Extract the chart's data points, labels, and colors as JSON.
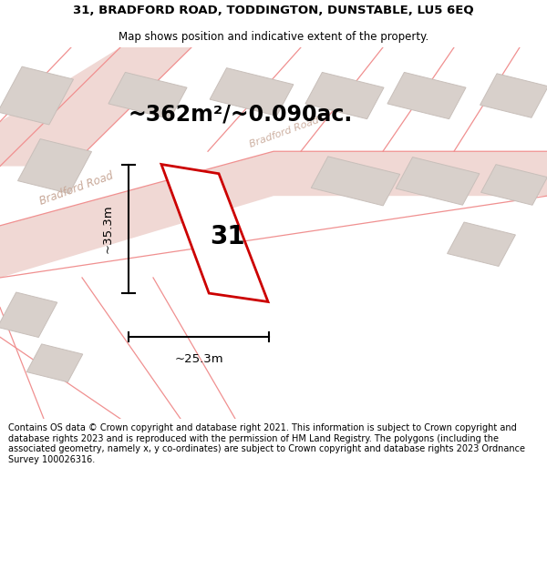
{
  "title_line1": "31, BRADFORD ROAD, TODDINGTON, DUNSTABLE, LU5 6EQ",
  "title_line2": "Map shows position and indicative extent of the property.",
  "area_text": "~362m²/~0.090ac.",
  "label_number": "31",
  "dim_vertical": "~35.3m",
  "dim_horizontal": "~25.3m",
  "footer_text": "Contains OS data © Crown copyright and database right 2021. This information is subject to Crown copyright and database rights 2023 and is reproduced with the permission of HM Land Registry. The polygons (including the associated geometry, namely x, y co-ordinates) are subject to Crown copyright and database rights 2023 Ordnance Survey 100026316.",
  "bg_color": "#f2ede9",
  "map_bg_color": "#f2ede9",
  "building_color": "#d8d0cb",
  "building_edge": "#c8bfba",
  "road_line_color": "#f09090",
  "road_label_color": "#c8a898",
  "plot_edge_color": "#cc0000",
  "plot_fill": "#ffffff",
  "dim_color": "#000000",
  "title_fontsize": 9.5,
  "subtitle_fontsize": 8.5,
  "area_fontsize": 17,
  "number_fontsize": 20,
  "dim_fontsize": 9.5,
  "footer_fontsize": 7
}
